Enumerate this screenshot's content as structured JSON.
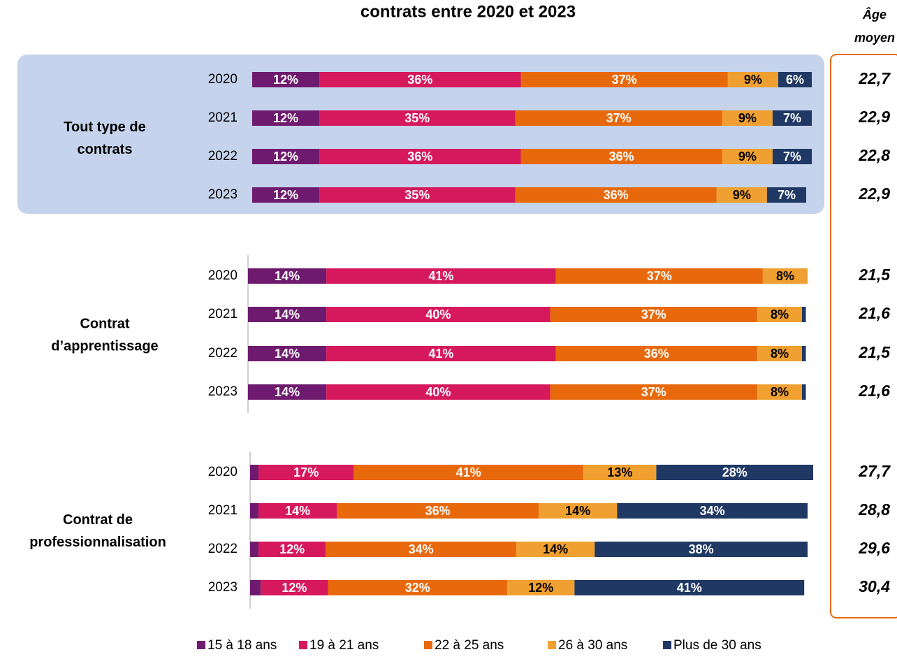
{
  "chart_data": {
    "type": "bar",
    "title": "contrats entre 2020 et 2023",
    "avg_age_header": [
      "Âge",
      "moyen"
    ],
    "xlim": [
      0,
      100
    ],
    "legend": [
      {
        "name": "15 à 18 ans",
        "color": "#6e1a6e"
      },
      {
        "name": "19 à 21 ans",
        "color": "#d6185c"
      },
      {
        "name": "22 à 25 ans",
        "color": "#e8690c"
      },
      {
        "name": "26 à 30 ans",
        "color": "#f0a030"
      },
      {
        "name": "Plus de 30 ans",
        "color": "#1f3864"
      }
    ],
    "groups": [
      {
        "name": [
          "Tout type de",
          "contrats"
        ],
        "categories": [
          "2020",
          "2021",
          "2022",
          "2023"
        ],
        "series": [
          {
            "values": [
              12,
              12,
              12,
              12
            ],
            "value_labels": [
              "12%",
              "12%",
              "12%",
              "12%"
            ]
          },
          {
            "values": [
              36,
              35,
              36,
              35
            ],
            "value_labels": [
              "36%",
              "35%",
              "36%",
              "35%"
            ]
          },
          {
            "values": [
              37,
              37,
              36,
              36
            ],
            "value_labels": [
              "37%",
              "37%",
              "36%",
              "36%"
            ]
          },
          {
            "values": [
              9,
              9,
              9,
              9
            ],
            "value_labels": [
              "9%",
              "9%",
              "9%",
              "9%"
            ]
          },
          {
            "values": [
              6,
              7,
              7,
              7
            ],
            "value_labels": [
              "6%",
              "7%",
              "7%",
              "7%"
            ]
          }
        ],
        "avg_age": {
          "values": [
            22.7,
            22.9,
            22.8,
            22.9
          ],
          "value_labels": [
            "22,7",
            "22,9",
            "22,8",
            "22,9"
          ]
        }
      },
      {
        "name": [
          "Contrat",
          "d’apprentissage"
        ],
        "categories": [
          "2020",
          "2021",
          "2022",
          "2023"
        ],
        "series": [
          {
            "values": [
              14,
              14,
              14,
              14
            ],
            "value_labels": [
              "14%",
              "14%",
              "14%",
              "14%"
            ]
          },
          {
            "values": [
              41,
              40,
              41,
              40
            ],
            "value_labels": [
              "41%",
              "40%",
              "41%",
              "40%"
            ]
          },
          {
            "values": [
              37,
              37,
              36,
              37
            ],
            "value_labels": [
              "37%",
              "37%",
              "36%",
              "37%"
            ]
          },
          {
            "values": [
              8,
              8,
              8,
              8
            ],
            "value_labels": [
              "8%",
              "8%",
              "8%",
              "8%"
            ]
          },
          {
            "values": [
              0,
              0.7,
              0.7,
              0.7
            ],
            "value_labels": [
              null,
              null,
              null,
              null
            ]
          }
        ],
        "avg_age": {
          "values": [
            21.5,
            21.6,
            21.5,
            21.6
          ],
          "value_labels": [
            "21,5",
            "21,6",
            "21,5",
            "21,6"
          ]
        }
      },
      {
        "name": [
          "Contrat de",
          "professionnalisation"
        ],
        "categories": [
          "2020",
          "2021",
          "2022",
          "2023"
        ],
        "series": [
          {
            "values": [
              1.5,
              1.5,
              1.5,
              1.9
            ],
            "value_labels": [
              null,
              null,
              null,
              null
            ]
          },
          {
            "values": [
              17,
              14,
              12,
              12
            ],
            "value_labels": [
              "17%",
              "14%",
              "12%",
              "12%"
            ]
          },
          {
            "values": [
              41,
              36,
              34,
              32
            ],
            "value_labels": [
              "41%",
              "36%",
              "34%",
              "32%"
            ]
          },
          {
            "values": [
              13,
              14,
              14,
              12
            ],
            "value_labels": [
              "13%",
              "14%",
              "14%",
              "12%"
            ]
          },
          {
            "values": [
              28,
              34,
              38,
              41
            ],
            "value_labels": [
              "28%",
              "34%",
              "38%",
              "41%"
            ]
          }
        ],
        "avg_age": {
          "values": [
            27.7,
            28.8,
            29.6,
            30.4
          ],
          "value_labels": [
            "27,7",
            "28,8",
            "29,6",
            "30,4"
          ]
        }
      }
    ]
  }
}
